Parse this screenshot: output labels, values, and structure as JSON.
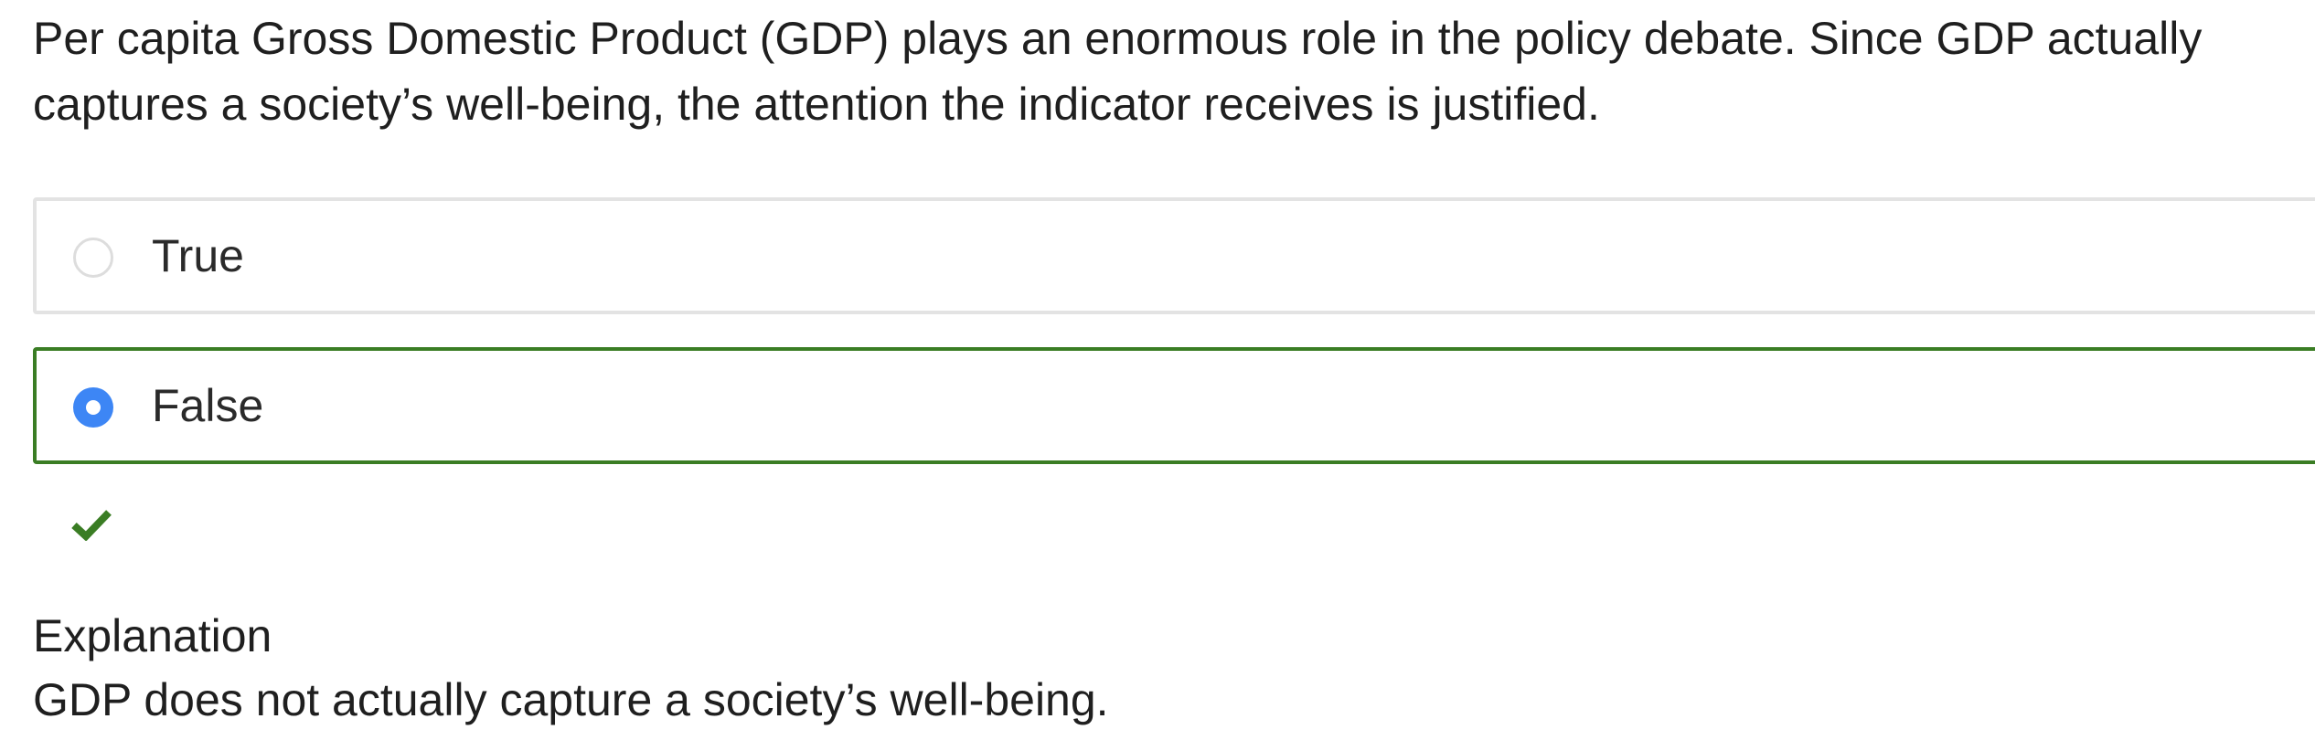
{
  "question": {
    "text": "Per capita Gross Domestic Product (GDP) plays an enormous role in the policy debate. Since GDP actually captures a society’s well-being, the attention the indicator receives is justified."
  },
  "options": [
    {
      "label": "True",
      "selected": false
    },
    {
      "label": "False",
      "selected": true
    }
  ],
  "feedback": {
    "icon": "checkmark-icon",
    "color": "#3a7d24"
  },
  "explanation": {
    "heading": "Explanation",
    "text": "GDP does not actually capture a society’s well-being."
  },
  "colors": {
    "correct_border": "#3a7d24",
    "selected_radio": "#3d86f5",
    "unselected_border": "#e3e3e3"
  }
}
